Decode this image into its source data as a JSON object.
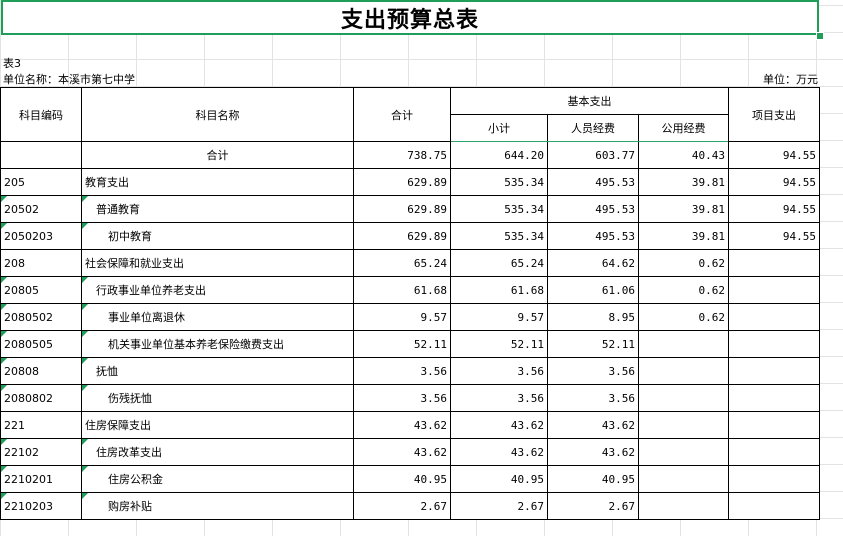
{
  "title": "支出预算总表",
  "table_no": "表3",
  "unit_name": "单位名称：本溪市第七中学",
  "unit": "单位：万元",
  "headers": {
    "code": "科目编码",
    "name": "科目名称",
    "total": "合计",
    "basic": "基本支出",
    "subtotal": "小计",
    "personnel": "人员经费",
    "public": "公用经费",
    "project": "项目支出"
  },
  "rows": [
    {
      "code": "",
      "name": "合计",
      "total": "738.75",
      "subtotal": "644.20",
      "personnel": "603.77",
      "public": "40.43",
      "project": "94.55"
    },
    {
      "code": "205",
      "name": "教育支出",
      "total": "629.89",
      "subtotal": "535.34",
      "personnel": "495.53",
      "public": "39.81",
      "project": "94.55"
    },
    {
      "code": "20502",
      "name": "普通教育",
      "total": "629.89",
      "subtotal": "535.34",
      "personnel": "495.53",
      "public": "39.81",
      "project": "94.55"
    },
    {
      "code": "2050203",
      "name": "初中教育",
      "total": "629.89",
      "subtotal": "535.34",
      "personnel": "495.53",
      "public": "39.81",
      "project": "94.55"
    },
    {
      "code": "208",
      "name": "社会保障和就业支出",
      "total": "65.24",
      "subtotal": "65.24",
      "personnel": "64.62",
      "public": "0.62",
      "project": ""
    },
    {
      "code": "20805",
      "name": "行政事业单位养老支出",
      "total": "61.68",
      "subtotal": "61.68",
      "personnel": "61.06",
      "public": "0.62",
      "project": ""
    },
    {
      "code": "2080502",
      "name": "事业单位离退休",
      "total": "9.57",
      "subtotal": "9.57",
      "personnel": "8.95",
      "public": "0.62",
      "project": ""
    },
    {
      "code": "2080505",
      "name": "机关事业单位基本养老保险缴费支出",
      "total": "52.11",
      "subtotal": "52.11",
      "personnel": "52.11",
      "public": "",
      "project": ""
    },
    {
      "code": "20808",
      "name": "抚恤",
      "total": "3.56",
      "subtotal": "3.56",
      "personnel": "3.56",
      "public": "",
      "project": ""
    },
    {
      "code": "2080802",
      "name": "伤残抚恤",
      "total": "3.56",
      "subtotal": "3.56",
      "personnel": "3.56",
      "public": "",
      "project": ""
    },
    {
      "code": "221",
      "name": "住房保障支出",
      "total": "43.62",
      "subtotal": "43.62",
      "personnel": "43.62",
      "public": "",
      "project": ""
    },
    {
      "code": "22102",
      "name": "住房改革支出",
      "total": "43.62",
      "subtotal": "43.62",
      "personnel": "43.62",
      "public": "",
      "project": ""
    },
    {
      "code": "2210201",
      "name": "住房公积金",
      "total": "40.95",
      "subtotal": "40.95",
      "personnel": "40.95",
      "public": "",
      "project": ""
    },
    {
      "code": "2210203",
      "name": "购房补贴",
      "total": "2.67",
      "subtotal": "2.67",
      "personnel": "2.67",
      "public": "",
      "project": ""
    }
  ]
}
